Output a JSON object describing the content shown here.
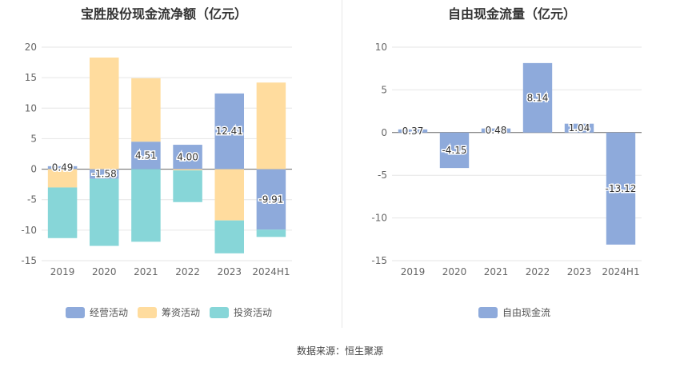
{
  "chart_data": [
    {
      "type": "bar",
      "title": "宝胜股份现金流净额（亿元）",
      "stacked": true,
      "categories": [
        "2019",
        "2020",
        "2021",
        "2022",
        "2023",
        "2024H1"
      ],
      "ylim": [
        -15,
        20
      ],
      "yticks": [
        "20",
        "15",
        "10",
        "5",
        "0",
        "-5",
        "-10",
        "-15"
      ],
      "grid": true,
      "legend_position": "bottom",
      "series": [
        {
          "name": "经营活动",
          "color": "#8eaadb",
          "values": [
            0.49,
            -1.58,
            4.51,
            4.0,
            12.41,
            -9.91
          ],
          "labels": [
            "0.49",
            "-1.58",
            "4.51",
            "4.00",
            "12.41",
            "-9.91"
          ]
        },
        {
          "name": "筹资活动",
          "color": "#ffdc9e",
          "values": [
            -3.0,
            18.3,
            10.4,
            -0.2,
            -8.4,
            14.2
          ]
        },
        {
          "name": "投资活动",
          "color": "#87d6d8",
          "values": [
            -8.3,
            -11.0,
            -11.9,
            -5.2,
            -5.4,
            -1.2
          ]
        }
      ]
    },
    {
      "type": "bar",
      "title": "自由现金流量（亿元）",
      "categories": [
        "2019",
        "2020",
        "2021",
        "2022",
        "2023",
        "2024H1"
      ],
      "ylim": [
        -15,
        10
      ],
      "yticks": [
        "10",
        "5",
        "0",
        "-5",
        "-10",
        "-15"
      ],
      "grid": true,
      "legend_position": "bottom",
      "series": [
        {
          "name": "自由现金流",
          "color": "#8eaadb",
          "values": [
            0.37,
            -4.15,
            0.48,
            8.14,
            1.04,
            -13.12
          ],
          "labels": [
            "0.37",
            "-4.15",
            "0.48",
            "8.14",
            "1.04",
            "-13.12"
          ]
        }
      ]
    }
  ],
  "source": "数据来源：恒生聚源"
}
